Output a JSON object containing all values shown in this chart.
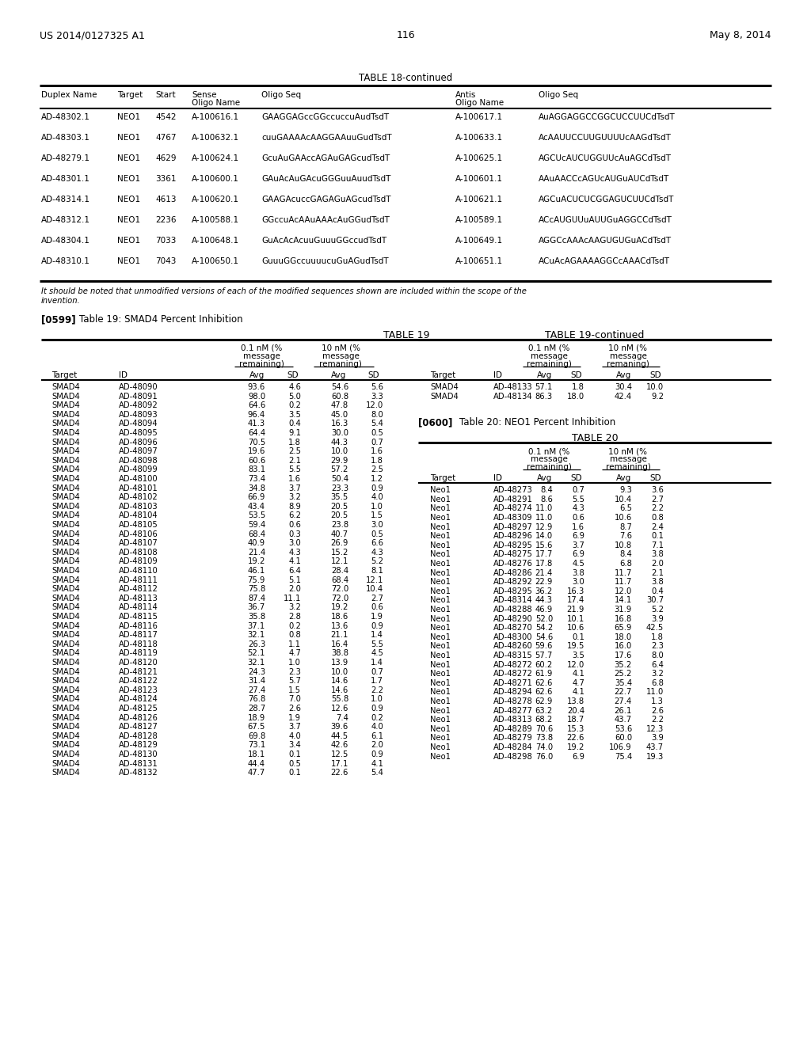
{
  "page_number": "116",
  "patent_number": "US 2014/0127325 A1",
  "patent_date": "May 8, 2014",
  "table18_title": "TABLE 18-continued",
  "table18_rows": [
    [
      "AD-48302.1",
      "NEO1",
      "4542",
      "A-100616.1",
      "GAAGGAGccGGccuccuAudTsdT",
      "A-100617.1",
      "AuAGGAGGCCGGCUCCUUCdTsdT"
    ],
    [
      "AD-48303.1",
      "NEO1",
      "4767",
      "A-100632.1",
      "cuuGAAAAcAAGGAAuuGudTsdT",
      "A-100633.1",
      "AcAAUUCCUUGUUUUcAAGdTsdT"
    ],
    [
      "AD-48279.1",
      "NEO1",
      "4629",
      "A-100624.1",
      "GcuAuGAAccAGAuGAGcudTsdT",
      "A-100625.1",
      "AGCUcAUCUGGUUcAuAGCdTsdT"
    ],
    [
      "AD-48301.1",
      "NEO1",
      "3361",
      "A-100600.1",
      "GAuAcAuGAcuGGGuuAuudTsdT",
      "A-100601.1",
      "AAuAACCcAGUcAUGuAUCdTsdT"
    ],
    [
      "AD-48314.1",
      "NEO1",
      "4613",
      "A-100620.1",
      "GAAGAcuccGAGAGuAGcudTsdT",
      "A-100621.1",
      "AGCuACUCUCGGAGUCUUCdTsdT"
    ],
    [
      "AD-48312.1",
      "NEO1",
      "2236",
      "A-100588.1",
      "GGccuAcAAuAAAcAuGGudTsdT",
      "A-100589.1",
      "ACcAUGUUuAUUGuAGGCCdTsdT"
    ],
    [
      "AD-48304.1",
      "NEO1",
      "7033",
      "A-100648.1",
      "GuAcAcAcuuGuuuGGccudTsdT",
      "A-100649.1",
      "AGGCcAAAcAAGUGUGuACdTsdT"
    ],
    [
      "AD-48310.1",
      "NEO1",
      "7043",
      "A-100650.1",
      "GuuuGGccuuuucuGuAGudTsdT",
      "A-100651.1",
      "ACuAcAGAAAAGGCcAAACdTsdT"
    ]
  ],
  "table18_footnote_line1": "It should be noted that unmodified versions of each of the modified sequences shown are included within the scope of the",
  "table18_footnote_line2": "invention.",
  "para599": "[0599]",
  "para599_text": "Table 19: SMAD4 Percent Inhibition",
  "table19_title": "TABLE 19",
  "table19_cont_title": "TABLE 19-continued",
  "table19_rows": [
    [
      "SMAD4",
      "AD-48090",
      "93.6",
      "4.6",
      "54.6",
      "5.6"
    ],
    [
      "SMAD4",
      "AD-48091",
      "98.0",
      "5.0",
      "60.8",
      "3.3"
    ],
    [
      "SMAD4",
      "AD-48092",
      "64.6",
      "0.2",
      "47.8",
      "12.0"
    ],
    [
      "SMAD4",
      "AD-48093",
      "96.4",
      "3.5",
      "45.0",
      "8.0"
    ],
    [
      "SMAD4",
      "AD-48094",
      "41.3",
      "0.4",
      "16.3",
      "5.4"
    ],
    [
      "SMAD4",
      "AD-48095",
      "64.4",
      "9.1",
      "30.0",
      "0.5"
    ],
    [
      "SMAD4",
      "AD-48096",
      "70.5",
      "1.8",
      "44.3",
      "0.7"
    ],
    [
      "SMAD4",
      "AD-48097",
      "19.6",
      "2.5",
      "10.0",
      "1.6"
    ],
    [
      "SMAD4",
      "AD-48098",
      "60.6",
      "2.1",
      "29.9",
      "1.8"
    ],
    [
      "SMAD4",
      "AD-48099",
      "83.1",
      "5.5",
      "57.2",
      "2.5"
    ],
    [
      "SMAD4",
      "AD-48100",
      "73.4",
      "1.6",
      "50.4",
      "1.2"
    ],
    [
      "SMAD4",
      "AD-48101",
      "34.8",
      "3.7",
      "23.3",
      "0.9"
    ],
    [
      "SMAD4",
      "AD-48102",
      "66.9",
      "3.2",
      "35.5",
      "4.0"
    ],
    [
      "SMAD4",
      "AD-48103",
      "43.4",
      "8.9",
      "20.5",
      "1.0"
    ],
    [
      "SMAD4",
      "AD-48104",
      "53.5",
      "6.2",
      "20.5",
      "1.5"
    ],
    [
      "SMAD4",
      "AD-48105",
      "59.4",
      "0.6",
      "23.8",
      "3.0"
    ],
    [
      "SMAD4",
      "AD-48106",
      "68.4",
      "0.3",
      "40.7",
      "0.5"
    ],
    [
      "SMAD4",
      "AD-48107",
      "40.9",
      "3.0",
      "26.9",
      "6.6"
    ],
    [
      "SMAD4",
      "AD-48108",
      "21.4",
      "4.3",
      "15.2",
      "4.3"
    ],
    [
      "SMAD4",
      "AD-48109",
      "19.2",
      "4.1",
      "12.1",
      "5.2"
    ],
    [
      "SMAD4",
      "AD-48110",
      "46.1",
      "6.4",
      "28.4",
      "8.1"
    ],
    [
      "SMAD4",
      "AD-48111",
      "75.9",
      "5.1",
      "68.4",
      "12.1"
    ],
    [
      "SMAD4",
      "AD-48112",
      "75.8",
      "2.0",
      "72.0",
      "10.4"
    ],
    [
      "SMAD4",
      "AD-48113",
      "87.4",
      "11.1",
      "72.0",
      "2.7"
    ],
    [
      "SMAD4",
      "AD-48114",
      "36.7",
      "3.2",
      "19.2",
      "0.6"
    ],
    [
      "SMAD4",
      "AD-48115",
      "35.8",
      "2.8",
      "18.6",
      "1.9"
    ],
    [
      "SMAD4",
      "AD-48116",
      "37.1",
      "0.2",
      "13.6",
      "0.9"
    ],
    [
      "SMAD4",
      "AD-48117",
      "32.1",
      "0.8",
      "21.1",
      "1.4"
    ],
    [
      "SMAD4",
      "AD-48118",
      "26.3",
      "1.1",
      "16.4",
      "5.5"
    ],
    [
      "SMAD4",
      "AD-48119",
      "52.1",
      "4.7",
      "38.8",
      "4.5"
    ],
    [
      "SMAD4",
      "AD-48120",
      "32.1",
      "1.0",
      "13.9",
      "1.4"
    ],
    [
      "SMAD4",
      "AD-48121",
      "24.3",
      "2.3",
      "10.0",
      "0.7"
    ],
    [
      "SMAD4",
      "AD-48122",
      "31.4",
      "5.7",
      "14.6",
      "1.7"
    ],
    [
      "SMAD4",
      "AD-48123",
      "27.4",
      "1.5",
      "14.6",
      "2.2"
    ],
    [
      "SMAD4",
      "AD-48124",
      "76.8",
      "7.0",
      "55.8",
      "1.0"
    ],
    [
      "SMAD4",
      "AD-48125",
      "28.7",
      "2.6",
      "12.6",
      "0.9"
    ],
    [
      "SMAD4",
      "AD-48126",
      "18.9",
      "1.9",
      "7.4",
      "0.2"
    ],
    [
      "SMAD4",
      "AD-48127",
      "67.5",
      "3.7",
      "39.6",
      "4.0"
    ],
    [
      "SMAD4",
      "AD-48128",
      "69.8",
      "4.0",
      "44.5",
      "6.1"
    ],
    [
      "SMAD4",
      "AD-48129",
      "73.1",
      "3.4",
      "42.6",
      "2.0"
    ],
    [
      "SMAD4",
      "AD-48130",
      "18.1",
      "0.1",
      "12.5",
      "0.9"
    ],
    [
      "SMAD4",
      "AD-48131",
      "44.4",
      "0.5",
      "17.1",
      "4.1"
    ],
    [
      "SMAD4",
      "AD-48132",
      "47.7",
      "0.1",
      "22.6",
      "5.4"
    ]
  ],
  "table19_cont_rows": [
    [
      "SMAD4",
      "AD-48133",
      "57.1",
      "1.8",
      "30.4",
      "10.0"
    ],
    [
      "SMAD4",
      "AD-48134",
      "86.3",
      "18.0",
      "42.4",
      "9.2"
    ]
  ],
  "para600": "[0600]",
  "para600_text": "Table 20: NEO1 Percent Inhibition",
  "table20_title": "TABLE 20",
  "table20_rows": [
    [
      "Neo1",
      "AD-48273",
      "8.4",
      "0.7",
      "9.3",
      "3.6"
    ],
    [
      "Neo1",
      "AD-48291",
      "8.6",
      "5.5",
      "10.4",
      "2.7"
    ],
    [
      "Neo1",
      "AD-48274",
      "11.0",
      "4.3",
      "6.5",
      "2.2"
    ],
    [
      "Neo1",
      "AD-48309",
      "11.0",
      "0.6",
      "10.6",
      "0.8"
    ],
    [
      "Neo1",
      "AD-48297",
      "12.9",
      "1.6",
      "8.7",
      "2.4"
    ],
    [
      "Neo1",
      "AD-48296",
      "14.0",
      "6.9",
      "7.6",
      "0.1"
    ],
    [
      "Neo1",
      "AD-48295",
      "15.6",
      "3.7",
      "10.8",
      "7.1"
    ],
    [
      "Neo1",
      "AD-48275",
      "17.7",
      "6.9",
      "8.4",
      "3.8"
    ],
    [
      "Neo1",
      "AD-48276",
      "17.8",
      "4.5",
      "6.8",
      "2.0"
    ],
    [
      "Neo1",
      "AD-48286",
      "21.4",
      "3.8",
      "11.7",
      "2.1"
    ],
    [
      "Neo1",
      "AD-48292",
      "22.9",
      "3.0",
      "11.7",
      "3.8"
    ],
    [
      "Neo1",
      "AD-48295",
      "36.2",
      "16.3",
      "12.0",
      "0.4"
    ],
    [
      "Neo1",
      "AD-48314",
      "44.3",
      "17.4",
      "14.1",
      "30.7"
    ],
    [
      "Neo1",
      "AD-48288",
      "46.9",
      "21.9",
      "31.9",
      "5.2"
    ],
    [
      "Neo1",
      "AD-48290",
      "52.0",
      "10.1",
      "16.8",
      "3.9"
    ],
    [
      "Neo1",
      "AD-48270",
      "54.2",
      "10.6",
      "65.9",
      "42.5"
    ],
    [
      "Neo1",
      "AD-48300",
      "54.6",
      "0.1",
      "18.0",
      "1.8"
    ],
    [
      "Neo1",
      "AD-48260",
      "59.6",
      "19.5",
      "16.0",
      "2.3"
    ],
    [
      "Neo1",
      "AD-48315",
      "57.7",
      "3.5",
      "17.6",
      "8.0"
    ],
    [
      "Neo1",
      "AD-48272",
      "60.2",
      "12.0",
      "35.2",
      "6.4"
    ],
    [
      "Neo1",
      "AD-48272",
      "61.9",
      "4.1",
      "25.2",
      "3.2"
    ],
    [
      "Neo1",
      "AD-48271",
      "62.6",
      "4.7",
      "35.4",
      "6.8"
    ],
    [
      "Neo1",
      "AD-48294",
      "62.6",
      "4.1",
      "22.7",
      "11.0"
    ],
    [
      "Neo1",
      "AD-48278",
      "62.9",
      "13.8",
      "27.4",
      "1.3"
    ],
    [
      "Neo1",
      "AD-48277",
      "63.2",
      "20.4",
      "26.1",
      "2.6"
    ],
    [
      "Neo1",
      "AD-48313",
      "68.2",
      "18.7",
      "43.7",
      "2.2"
    ],
    [
      "Neo1",
      "AD-48289",
      "70.6",
      "15.3",
      "53.6",
      "12.3"
    ],
    [
      "Neo1",
      "AD-48279",
      "73.8",
      "22.6",
      "60.0",
      "3.9"
    ],
    [
      "Neo1",
      "AD-48284",
      "74.0",
      "19.2",
      "106.9",
      "43.7"
    ],
    [
      "Neo1",
      "AD-48298",
      "76.0",
      "6.9",
      "75.4",
      "19.3"
    ]
  ]
}
